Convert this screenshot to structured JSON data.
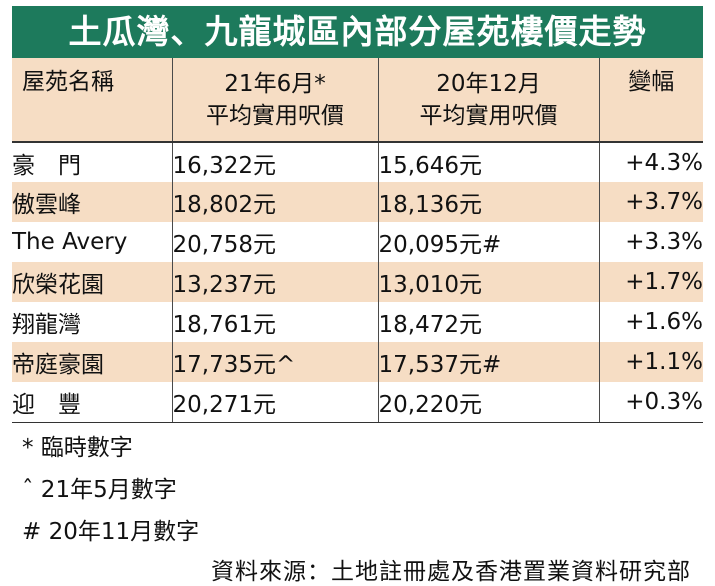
{
  "title": "土瓜灣、九龍城區內部分屋苑樓價走勢",
  "headers": {
    "name": "屋苑名稱",
    "col1_line1": "21年6月*",
    "col1_line2": "平均實用呎價",
    "col2_line1": "20年12月",
    "col2_line2": "平均實用呎價",
    "change": "變幅"
  },
  "rows": [
    {
      "name": "豪　門",
      "jun21": "16,322元",
      "dec20": "15,646元",
      "change": "+4.3%"
    },
    {
      "name": "傲雲峰",
      "jun21": "18,802元",
      "dec20": "18,136元",
      "change": "+3.7%"
    },
    {
      "name": "The Avery",
      "jun21": "20,758元",
      "dec20": "20,095元#",
      "change": "+3.3%"
    },
    {
      "name": "欣榮花園",
      "jun21": "13,237元",
      "dec20": "13,010元",
      "change": "+1.7%"
    },
    {
      "name": "翔龍灣",
      "jun21": "18,761元",
      "dec20": "18,472元",
      "change": "+1.6%"
    },
    {
      "name": "帝庭豪園",
      "jun21": "17,735元^",
      "dec20": "17,537元#",
      "change": "+1.1%"
    },
    {
      "name": "迎　豐",
      "jun21": "20,271元",
      "dec20": "20,220元",
      "change": "+0.3%"
    }
  ],
  "notes": [
    "*  臨時數字",
    "ˆ  21年5月數字",
    "#  20年11月數字"
  ],
  "source": "資料來源：土地註冊處及香港置業資料研究部"
}
